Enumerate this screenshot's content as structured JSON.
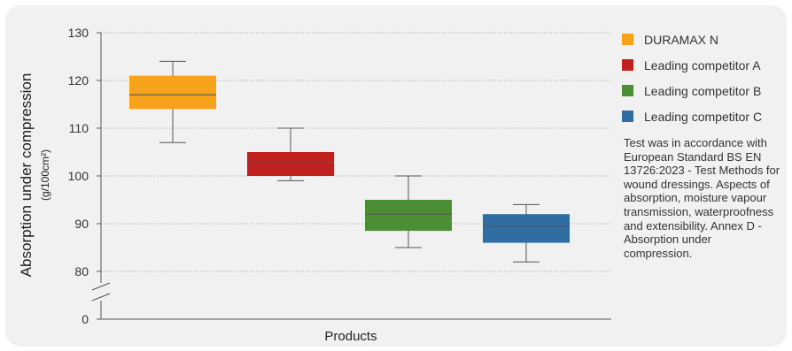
{
  "chart_data": {
    "type": "box",
    "xlabel": "Products",
    "ylabel": "Absorption under compression",
    "ylabel_unit": "(g/100cm²)",
    "yticks": [
      0,
      80,
      90,
      100,
      110,
      120,
      130
    ],
    "ylim": [
      78,
      130
    ],
    "axis_break": true,
    "grid": "horizontal dotted",
    "legend_position": "right",
    "series": [
      {
        "name": "DURAMAX N",
        "color": "#f7a21b",
        "min": 107,
        "q1": 114,
        "median": 117,
        "q3": 121,
        "max": 124
      },
      {
        "name": "Leading competitor A",
        "color": "#c0201e",
        "min": 99,
        "q1": 100,
        "median": 103,
        "q3": 105,
        "max": 110
      },
      {
        "name": "Leading competitor B",
        "color": "#4b8e33",
        "min": 85,
        "q1": 88.5,
        "median": 92,
        "q3": 95,
        "max": 100
      },
      {
        "name": "Leading competitor C",
        "color": "#2f6da3",
        "min": 82,
        "q1": 86,
        "median": 89.5,
        "q3": 92,
        "max": 94
      }
    ],
    "note": "Test was in accordance with European Standard BS EN 13726:2023 - Test Methods for wound dressings. Aspects of absorption, moisture vapour transmission, waterproofness and extensibility. Annex D - Absorption under compression."
  }
}
